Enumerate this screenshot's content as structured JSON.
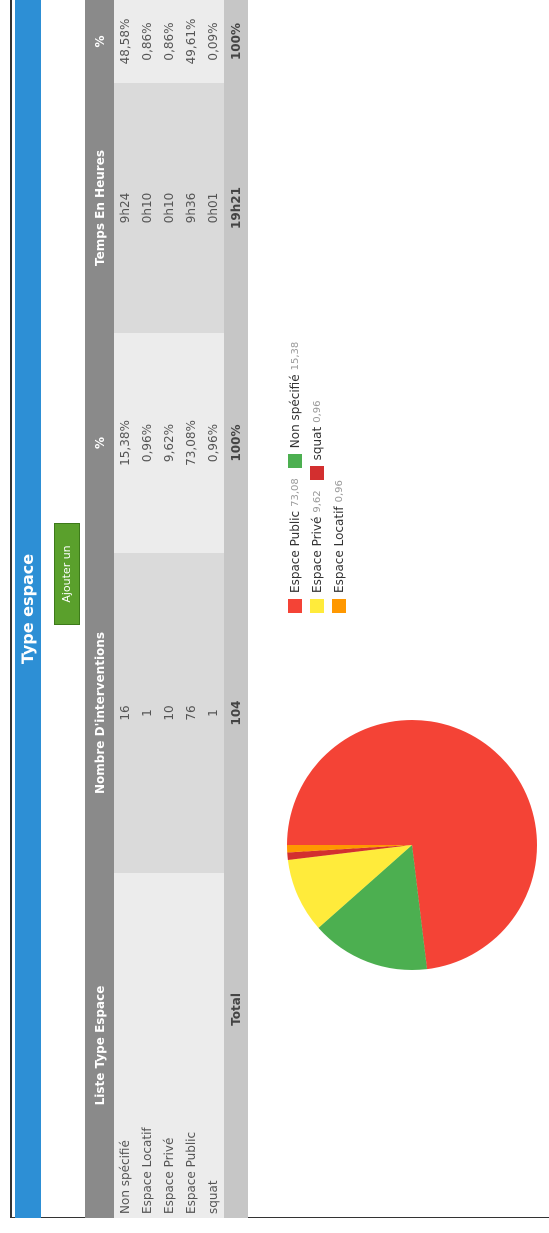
{
  "title": "Type espace",
  "button": "Ajouter un descriptif",
  "table": {
    "headers": [
      "Liste Type Espace",
      "Nombre D'interventions",
      "%",
      "Temps En Heures",
      "%"
    ],
    "rows": [
      [
        "Non spécifié",
        "16",
        "15,38%",
        "9h24",
        "48,58%"
      ],
      [
        "Espace Locatif",
        "1",
        "0,96%",
        "0h10",
        "0,86%"
      ],
      [
        "Espace Privé",
        "10",
        "9,62%",
        "0h10",
        "0,86%"
      ],
      [
        "Espace Public",
        "76",
        "73,08%",
        "9h36",
        "49,61%"
      ],
      [
        "squat",
        "1",
        "0,96%",
        "0h01",
        "0,09%"
      ]
    ],
    "total": [
      "Total",
      "104",
      "100%",
      "19h21",
      "100%"
    ]
  },
  "chart_data": {
    "type": "pie",
    "categories": [
      "Espace Public",
      "Non spécifié",
      "Espace Privé",
      "squat",
      "Espace Locatif"
    ],
    "values": [
      73.08,
      15.38,
      9.62,
      0.96,
      0.96
    ],
    "value_labels": [
      "73,08",
      "15,38",
      "9,62",
      "0,96",
      "0,96"
    ],
    "colors": [
      "#f44336",
      "#4caf50",
      "#ffeb3b",
      "#d32f2f",
      "#ff9800"
    ]
  }
}
